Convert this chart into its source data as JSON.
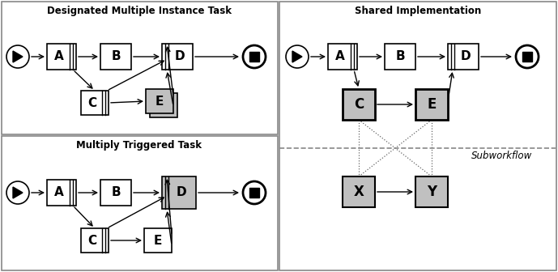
{
  "fig_width": 6.89,
  "fig_height": 3.36,
  "dpi": 100,
  "bg_color": "#ffffff",
  "title1": "Designated Multiple Instance Task",
  "title2": "Shared Implementation",
  "title3": "Multiply Triggered Task",
  "title4": "Subworkflow",
  "gray_light": "#c0c0c0",
  "gray_dark": "#999999",
  "panel_ec": "#888888"
}
